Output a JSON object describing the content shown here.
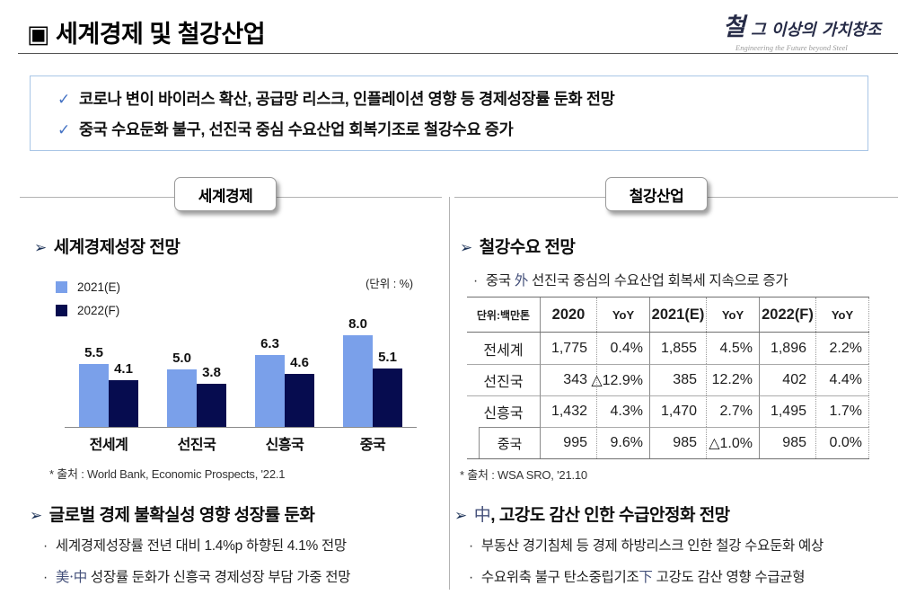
{
  "glyphs": {
    "check": "✓",
    "arrow": "➢",
    "dot": "·",
    "title_marker": "▣"
  },
  "header": {
    "title": "▣ 세계경제 및 철강산업",
    "logo": {
      "slogan_first": "철",
      "slogan_rest": " 그 이상의 가치창조",
      "slogan_en": "Engineering the Future beyond Steel"
    }
  },
  "summary": {
    "bullets": [
      "코로나 변이 바이러스 확산, 공급망 리스크, 인플레이션 영향 등 경제성장률 둔화 전망",
      "중국 수요둔화 불구, 선진국 중심 수요산업 회복기조로 철강수요 증가"
    ]
  },
  "sections": {
    "left_badge": "세계경제",
    "right_badge": "철강산업"
  },
  "left": {
    "chart_heading": "세계경제성장 전망",
    "unit_label": "(단위 : %)",
    "source": "* 출처 : World Bank, Economic Prospects, '22.1",
    "analysis": {
      "heading": "글로벌 경제 불확실성 영향 성장률 둔화",
      "bullet1": "세계경제성장률 전년 대비 1.4%p 하향된 4.1% 전망",
      "bullet2_hanja": "美·中",
      "bullet2_rest": " 성장률 둔화가 신흥국 경제성장 부담 가중 전망"
    }
  },
  "chart_data": {
    "type": "bar",
    "title": "세계경제성장 전망",
    "unit": "%",
    "categories": [
      "전세계",
      "선진국",
      "신흥국",
      "중국"
    ],
    "series": [
      {
        "name": "2021(E)",
        "color": "#7aa0ea",
        "values": [
          5.5,
          5.0,
          6.3,
          8.0
        ]
      },
      {
        "name": "2022(F)",
        "color": "#060c4f",
        "values": [
          4.1,
          3.8,
          4.6,
          5.1
        ]
      }
    ],
    "ylim": [
      0,
      8.8
    ],
    "value_labels": true,
    "grid": false,
    "legend_position": "top-left"
  },
  "right": {
    "heading": "철강수요 전망",
    "bullet_pre": "중국 ",
    "bullet_hanja": "外",
    "bullet_post": " 선진국 중심의 수요산업 회복세 지속으로 증가",
    "table": {
      "unit_header": "단위:백만톤",
      "col_headers": [
        "2020",
        "YoY",
        "2021(E)",
        "YoY",
        "2022(F)",
        "YoY"
      ],
      "rows": [
        {
          "label": "전세계",
          "sub": false,
          "cells": [
            "1,775",
            "0.4%",
            "1,855",
            "4.5%",
            "1,896",
            "2.2%"
          ]
        },
        {
          "label": "선진국",
          "sub": false,
          "cells": [
            "343",
            "△12.9%",
            "385",
            "12.2%",
            "402",
            "4.4%"
          ]
        },
        {
          "label": "신흥국",
          "sub": false,
          "cells": [
            "1,432",
            "4.3%",
            "1,470",
            "2.7%",
            "1,495",
            "1.7%"
          ]
        },
        {
          "label": "중국",
          "sub": true,
          "cells": [
            "995",
            "9.6%",
            "985",
            "△1.0%",
            "985",
            "0.0%"
          ]
        }
      ]
    },
    "source": "* 출처 : WSA SRO, '21.10",
    "analysis": {
      "heading_hanja": "中",
      "heading_rest": ", 고강도 감산 인한 수급안정화 전망",
      "bullet1": "부동산 경기침체 등 경제 하방리스크 인한 철강 수요둔화 예상",
      "bullet2_pre": "수요위축 불구 탄소중립기조",
      "bullet2_hanja": "下",
      "bullet2_post": " 고강도 감산 영향 수급균형"
    }
  },
  "colors": {
    "accent_check": "#4472c4",
    "summary_border": "#a9c6e6",
    "bar_2021": "#7aa0ea",
    "bar_2022": "#060c4f",
    "hanja_text": "#44507a"
  }
}
